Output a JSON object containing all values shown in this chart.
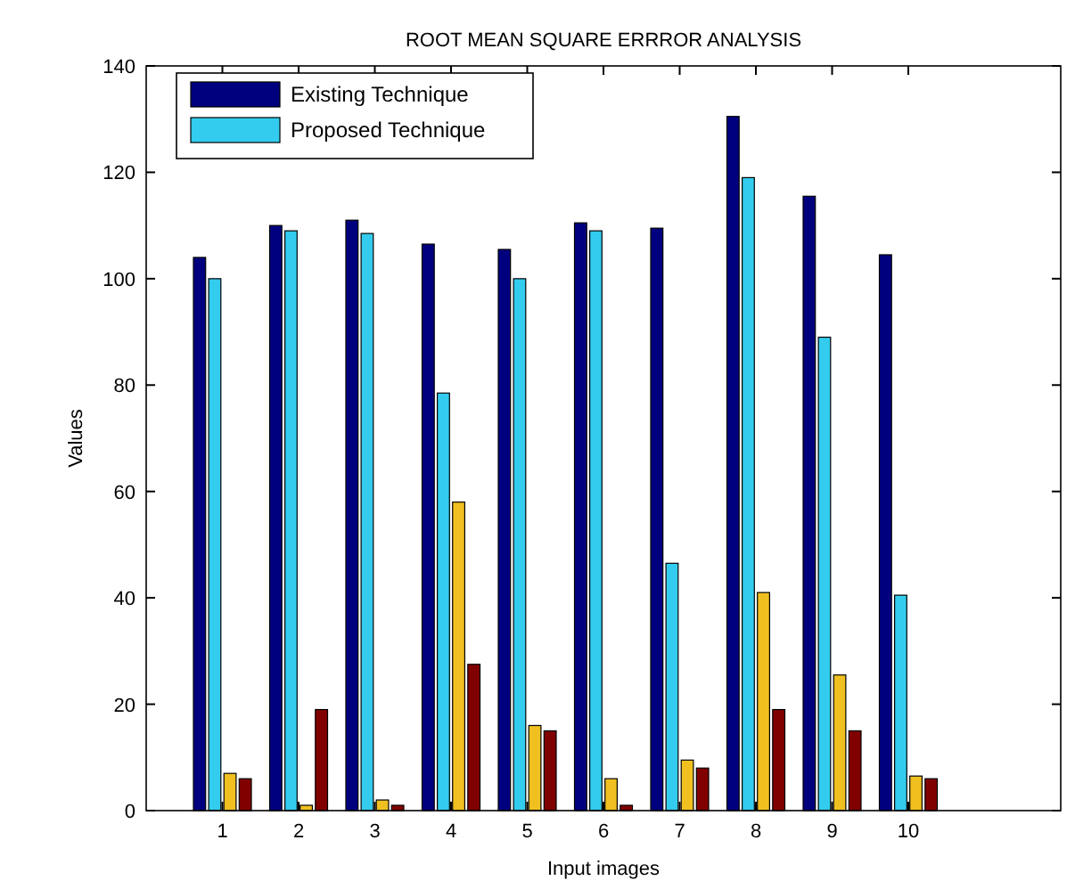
{
  "chart_data": {
    "type": "bar",
    "title": "ROOT MEAN SQUARE ERRROR ANALYSIS",
    "xlabel": "Input images",
    "ylabel": "Values",
    "x": [
      1,
      2,
      3,
      4,
      5,
      6,
      7,
      8,
      9,
      10
    ],
    "xlim": [
      0,
      12
    ],
    "xticks": [
      1,
      2,
      3,
      4,
      5,
      6,
      7,
      8,
      9,
      10
    ],
    "ylim": [
      0,
      140
    ],
    "yticks": [
      0,
      20,
      40,
      60,
      80,
      100,
      120,
      140
    ],
    "series": [
      {
        "name": "Existing Technique",
        "color": "#00007f",
        "values": [
          104,
          110,
          111,
          106.5,
          105.5,
          110.5,
          109.5,
          130.5,
          115.5,
          104.5
        ]
      },
      {
        "name": "Proposed Technique",
        "color": "#33ccee",
        "values": [
          100,
          109,
          108.5,
          78.5,
          100,
          109,
          46.5,
          119,
          89,
          40.5
        ]
      },
      {
        "color": "#f0c020",
        "values": [
          7,
          1,
          2,
          58,
          16,
          6,
          9.5,
          41,
          25.5,
          6.5
        ]
      },
      {
        "color": "#800000",
        "values": [
          6,
          19,
          1,
          27.5,
          15,
          1,
          8,
          19,
          15,
          6
        ]
      }
    ],
    "legend": "top left",
    "grid": false
  }
}
